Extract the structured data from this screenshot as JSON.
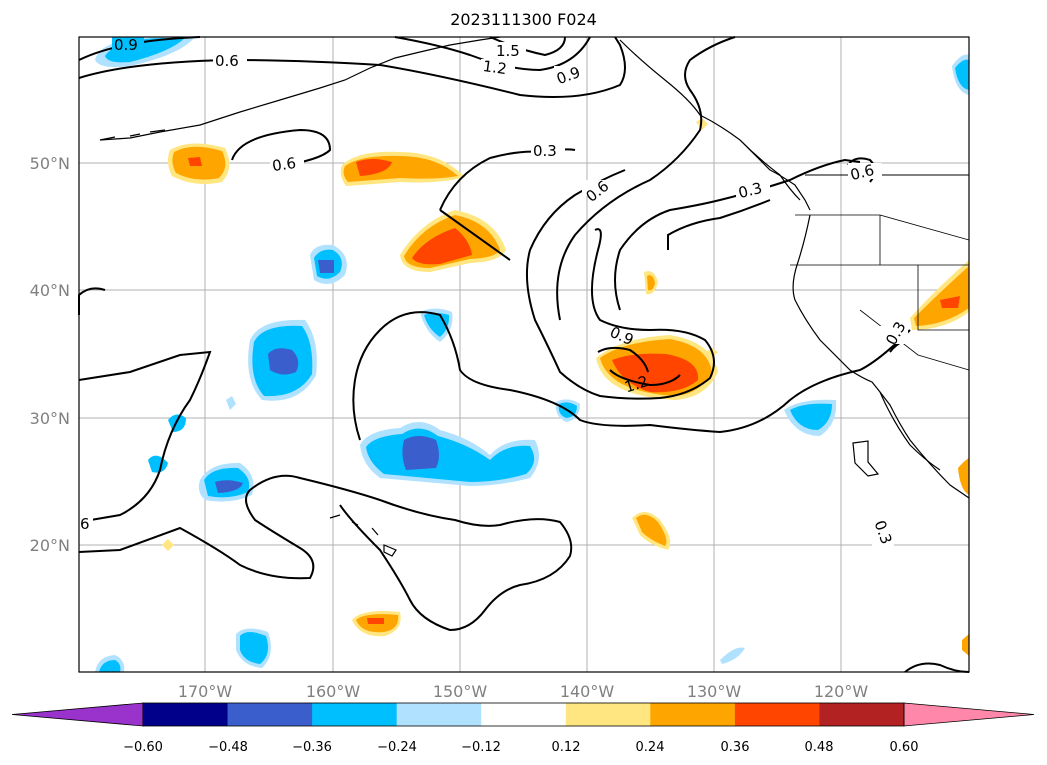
{
  "title": "2023111300 F024",
  "map": {
    "lon_labels": [
      "170°W",
      "160°W",
      "150°W",
      "140°W",
      "130°W",
      "120°W"
    ],
    "lat_labels": [
      "50°N",
      "40°N",
      "30°N",
      "20°N"
    ],
    "contour_labels": [
      "0.9",
      "0.6",
      "1.5",
      "1.2",
      "0.9",
      "0.6",
      "0.3",
      "0.6",
      "0.3",
      "0.6",
      "0.9",
      "1.2",
      "0.3",
      "0.3",
      "6"
    ]
  },
  "colorbar": {
    "tick_labels": [
      "−0.60",
      "−0.48",
      "−0.36",
      "−0.24",
      "−0.12",
      "0.12",
      "0.24",
      "0.36",
      "0.48",
      "0.60"
    ],
    "colors": [
      "#9933cc",
      "#00008b",
      "#3a5fcd",
      "#00bfff",
      "#b0e2ff",
      "#ffffff",
      "#ffe680",
      "#ffa500",
      "#ff4500",
      "#b22222",
      "#ff88aa"
    ]
  }
}
